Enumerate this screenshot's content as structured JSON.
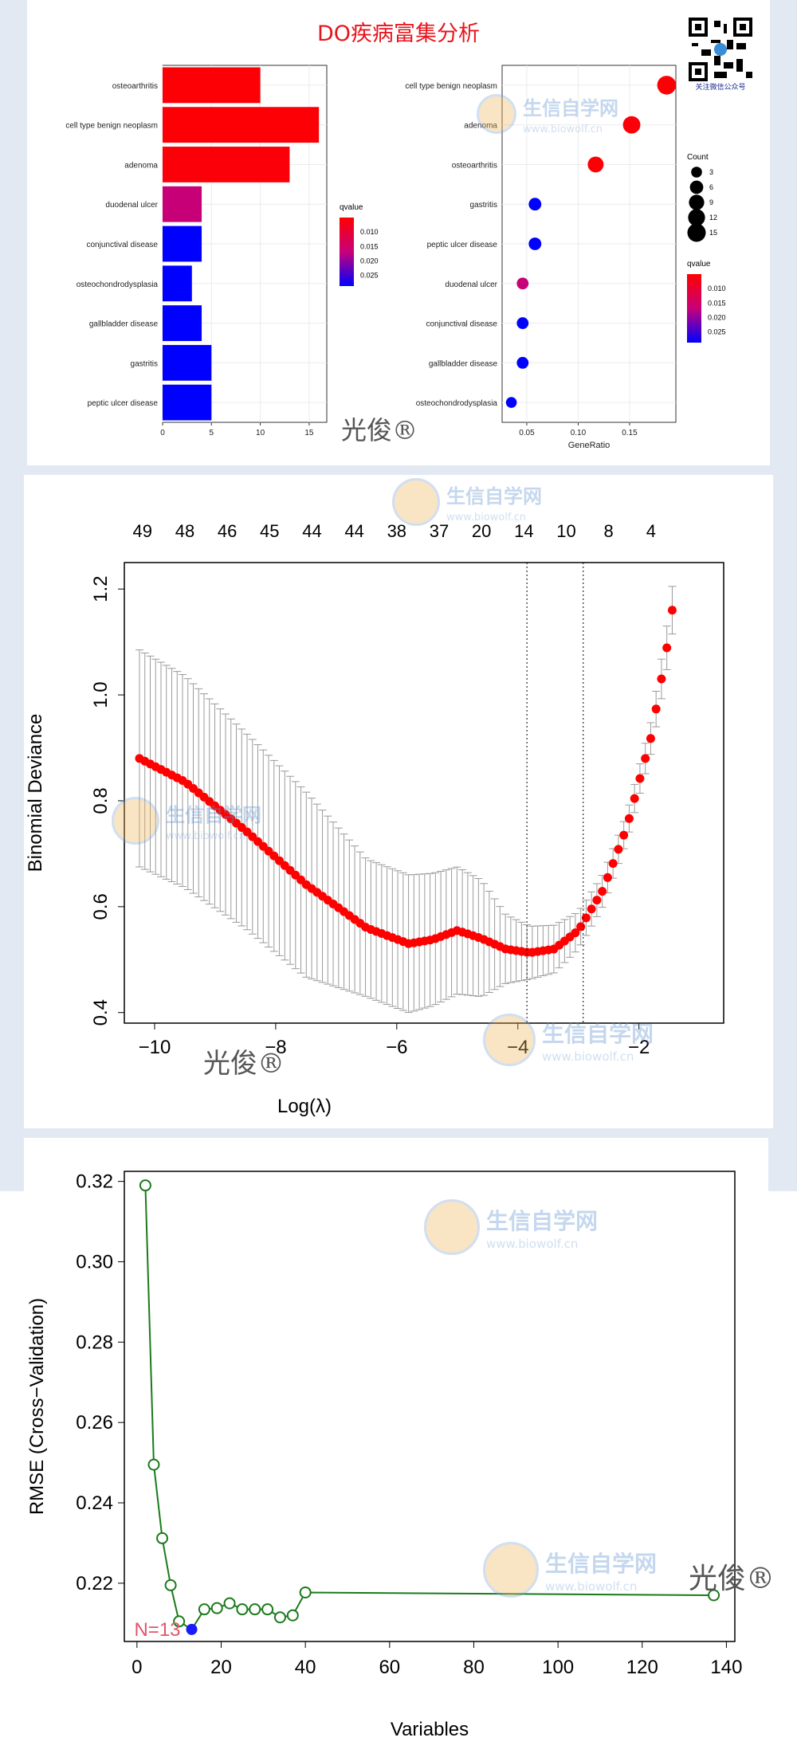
{
  "figure_title": "DO疾病富集分析",
  "qr_caption": "关注微信公众号",
  "watermark_name": "生信自学网",
  "watermark_url": "www.biowolf.cn",
  "signature": "光俊®",
  "colors": {
    "high": "#ff0000",
    "low": "#0000ff",
    "line": "#1a7a1a",
    "selected": "#1a1aff",
    "label": "#e0566a"
  },
  "chart_data": [
    {
      "type": "bar",
      "orientation": "horizontal",
      "categories": [
        "osteoarthritis",
        "cell type benign neoplasm",
        "adenoma",
        "duodenal ulcer",
        "conjunctival disease",
        "osteochondrodysplasia",
        "gallbladder disease",
        "gastritis",
        "peptic ulcer disease"
      ],
      "values": [
        10,
        16,
        13,
        4,
        4,
        3,
        4,
        5,
        5
      ],
      "qvalue": [
        0.0055,
        0.0055,
        0.0058,
        0.017,
        0.028,
        0.028,
        0.028,
        0.028,
        0.028
      ],
      "xticks": [
        "0",
        "5",
        "10",
        "15"
      ],
      "xlim": [
        0,
        16.8
      ],
      "legend_title": "qvalue",
      "legend_ticks": [
        "0.010",
        "0.015",
        "0.020",
        "0.025"
      ]
    },
    {
      "type": "scatter",
      "categories": [
        "cell type benign neoplasm",
        "adenoma",
        "osteoarthritis",
        "gastritis",
        "peptic ulcer disease",
        "duodenal ulcer",
        "conjunctival disease",
        "gallbladder disease",
        "osteochondrodysplasia"
      ],
      "gene_ratio": [
        0.186,
        0.152,
        0.117,
        0.058,
        0.058,
        0.046,
        0.046,
        0.046,
        0.035
      ],
      "count": [
        16,
        13,
        10,
        5,
        5,
        4,
        4,
        4,
        3
      ],
      "qvalue": [
        0.0055,
        0.0058,
        0.0055,
        0.028,
        0.028,
        0.017,
        0.028,
        0.028,
        0.028
      ],
      "xticks": [
        "0.05",
        "0.10",
        "0.15"
      ],
      "xlim": [
        0.026,
        0.195
      ],
      "xlabel": "GeneRatio",
      "size_legend_title": "Count",
      "size_legend": [
        "3",
        "6",
        "9",
        "12",
        "15"
      ],
      "legend_title": "qvalue",
      "legend_ticks": [
        "0.010",
        "0.015",
        "0.020",
        "0.025"
      ]
    },
    {
      "type": "scatter",
      "xlabel": "Log(λ)",
      "ylabel": "Binomial Deviance",
      "xlim": [
        -10.5,
        -0.6
      ],
      "ylim": [
        0.38,
        1.25
      ],
      "xticks": [
        "−10",
        "−8",
        "−6",
        "−4",
        "−2"
      ],
      "yticks": [
        "0.4",
        "0.6",
        "0.8",
        "1.0",
        "1.2"
      ],
      "top_labels": [
        "49",
        "48",
        "46",
        "45",
        "44",
        "44",
        "38",
        "37",
        "20",
        "14",
        "10",
        "8",
        "4"
      ],
      "vlines": [
        -3.85,
        -2.92
      ],
      "curve_points": [
        [
          -10.25,
          0.88
        ],
        [
          -9.5,
          0.836
        ],
        [
          -8.5,
          0.744
        ],
        [
          -7.5,
          0.642
        ],
        [
          -6.5,
          0.56
        ],
        [
          -5.8,
          0.53
        ],
        [
          -5.4,
          0.538
        ],
        [
          -5.0,
          0.555
        ],
        [
          -4.6,
          0.54
        ],
        [
          -4.2,
          0.52
        ],
        [
          -3.8,
          0.513
        ],
        [
          -3.4,
          0.52
        ],
        [
          -3.0,
          0.555
        ],
        [
          -2.6,
          0.63
        ],
        [
          -2.2,
          0.75
        ],
        [
          -1.8,
          0.92
        ],
        [
          -1.55,
          1.08
        ],
        [
          -1.45,
          1.16
        ]
      ],
      "error_points": [
        [
          -10.25,
          0.205
        ],
        [
          -9.5,
          0.2
        ],
        [
          -8.5,
          0.185
        ],
        [
          -7.5,
          0.175
        ],
        [
          -6.5,
          0.13
        ],
        [
          -5.8,
          0.13
        ],
        [
          -5.0,
          0.12
        ],
        [
          -4.6,
          0.11
        ],
        [
          -4.2,
          0.065
        ],
        [
          -3.8,
          0.05
        ],
        [
          -3.4,
          0.045
        ],
        [
          -3.0,
          0.035
        ],
        [
          -2.6,
          0.03
        ],
        [
          -2.2,
          0.025
        ],
        [
          -1.8,
          0.03
        ],
        [
          -1.45,
          0.045
        ]
      ]
    },
    {
      "type": "line",
      "xlabel": "Variables",
      "ylabel": "RMSE (Cross−Validation)",
      "xlim": [
        -3,
        142
      ],
      "ylim": [
        0.2055,
        0.3225
      ],
      "xticks": [
        "0",
        "20",
        "40",
        "60",
        "80",
        "100",
        "120",
        "140"
      ],
      "yticks": [
        "0.22",
        "0.24",
        "0.26",
        "0.28",
        "0.30",
        "0.32"
      ],
      "x": [
        2,
        4,
        6,
        8,
        10,
        13,
        16,
        19,
        22,
        25,
        28,
        31,
        34,
        37,
        40,
        137
      ],
      "y": [
        0.319,
        0.2495,
        0.2312,
        0.2195,
        0.2105,
        0.2085,
        0.2135,
        0.2138,
        0.215,
        0.2135,
        0.2135,
        0.2135,
        0.2115,
        0.212,
        0.2177,
        0.217
      ],
      "selected_index": 5,
      "annotation": "N=13"
    }
  ]
}
